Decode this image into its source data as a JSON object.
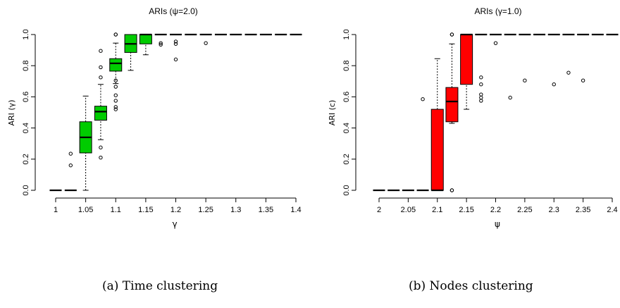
{
  "chart_data": [
    {
      "type": "boxplot",
      "title": "ARIs (ψ=2.0)",
      "xlabel": "γ",
      "ylabel": "ARI (γ)",
      "fill_color": "#00cc00",
      "ylim": [
        0,
        1
      ],
      "x_tick_labels": [
        "1",
        "1.05",
        "1.1",
        "1.15",
        "1.2",
        "1.25",
        "1.3",
        "1.35",
        "1.4"
      ],
      "y_tick_labels": [
        "0.0",
        "0.2",
        "0.4",
        "0.6",
        "0.8",
        "1.0"
      ],
      "boxes": [
        {
          "x": 1.0,
          "min": 0.0,
          "q1": 0.0,
          "median": 0.0,
          "q3": 0.0,
          "max": 0.0,
          "outliers": []
        },
        {
          "x": 1.025,
          "min": 0.0,
          "q1": 0.0,
          "median": 0.0,
          "q3": 0.0,
          "max": 0.0,
          "outliers": [
            0.16,
            0.235
          ]
        },
        {
          "x": 1.05,
          "min": 0.0,
          "q1": 0.24,
          "median": 0.34,
          "q3": 0.44,
          "max": 0.605,
          "outliers": []
        },
        {
          "x": 1.075,
          "min": 0.325,
          "q1": 0.45,
          "median": 0.505,
          "q3": 0.54,
          "max": 0.68,
          "outliers": [
            0.21,
            0.275,
            0.725,
            0.79,
            0.895
          ]
        },
        {
          "x": 1.1,
          "min": 0.685,
          "q1": 0.765,
          "median": 0.815,
          "q3": 0.845,
          "max": 0.945,
          "outliers": [
            0.52,
            0.535,
            0.575,
            0.61,
            0.665,
            0.705,
            1.0,
            1.0
          ]
        },
        {
          "x": 1.125,
          "min": 0.77,
          "q1": 0.885,
          "median": 0.94,
          "q3": 1.0,
          "max": 1.0,
          "outliers": []
        },
        {
          "x": 1.15,
          "min": 0.87,
          "q1": 0.94,
          "median": 1.0,
          "q3": 1.0,
          "max": 1.0,
          "outliers": []
        },
        {
          "x": 1.175,
          "min": 1.0,
          "q1": 1.0,
          "median": 1.0,
          "q3": 1.0,
          "max": 1.0,
          "outliers": [
            0.935,
            0.945
          ]
        },
        {
          "x": 1.2,
          "min": 1.0,
          "q1": 1.0,
          "median": 1.0,
          "q3": 1.0,
          "max": 1.0,
          "outliers": [
            0.84,
            0.94,
            0.955
          ]
        },
        {
          "x": 1.225,
          "min": 1.0,
          "q1": 1.0,
          "median": 1.0,
          "q3": 1.0,
          "max": 1.0,
          "outliers": []
        },
        {
          "x": 1.25,
          "min": 1.0,
          "q1": 1.0,
          "median": 1.0,
          "q3": 1.0,
          "max": 1.0,
          "outliers": [
            0.945
          ]
        },
        {
          "x": 1.275,
          "min": 1.0,
          "q1": 1.0,
          "median": 1.0,
          "q3": 1.0,
          "max": 1.0,
          "outliers": []
        },
        {
          "x": 1.3,
          "min": 1.0,
          "q1": 1.0,
          "median": 1.0,
          "q3": 1.0,
          "max": 1.0,
          "outliers": []
        },
        {
          "x": 1.325,
          "min": 1.0,
          "q1": 1.0,
          "median": 1.0,
          "q3": 1.0,
          "max": 1.0,
          "outliers": []
        },
        {
          "x": 1.35,
          "min": 1.0,
          "q1": 1.0,
          "median": 1.0,
          "q3": 1.0,
          "max": 1.0,
          "outliers": []
        },
        {
          "x": 1.375,
          "min": 1.0,
          "q1": 1.0,
          "median": 1.0,
          "q3": 1.0,
          "max": 1.0,
          "outliers": []
        },
        {
          "x": 1.4,
          "min": 1.0,
          "q1": 1.0,
          "median": 1.0,
          "q3": 1.0,
          "max": 1.0,
          "outliers": []
        }
      ]
    },
    {
      "type": "boxplot",
      "title": "ARIs (γ=1.0)",
      "xlabel": "ψ",
      "ylabel": "ARI (c)",
      "fill_color": "#ff0000",
      "ylim": [
        0,
        1
      ],
      "x_tick_labels": [
        "2",
        "2.05",
        "2.1",
        "2.15",
        "2.2",
        "2.25",
        "2.3",
        "2.35",
        "2.4"
      ],
      "y_tick_labels": [
        "0.0",
        "0.2",
        "0.4",
        "0.6",
        "0.8",
        "1.0"
      ],
      "boxes": [
        {
          "x": 2.0,
          "min": 0.0,
          "q1": 0.0,
          "median": 0.0,
          "q3": 0.0,
          "max": 0.0,
          "outliers": []
        },
        {
          "x": 2.025,
          "min": 0.0,
          "q1": 0.0,
          "median": 0.0,
          "q3": 0.0,
          "max": 0.0,
          "outliers": []
        },
        {
          "x": 2.05,
          "min": 0.0,
          "q1": 0.0,
          "median": 0.0,
          "q3": 0.0,
          "max": 0.0,
          "outliers": []
        },
        {
          "x": 2.075,
          "min": 0.0,
          "q1": 0.0,
          "median": 0.0,
          "q3": 0.0,
          "max": 0.0,
          "outliers": [
            0.585
          ]
        },
        {
          "x": 2.1,
          "min": 0.0,
          "q1": 0.0,
          "median": 0.0,
          "q3": 0.52,
          "max": 0.845,
          "outliers": []
        },
        {
          "x": 2.125,
          "min": 0.43,
          "q1": 0.44,
          "median": 0.57,
          "q3": 0.66,
          "max": 0.94,
          "outliers": [
            0.0,
            0.0,
            1.0,
            1.0
          ]
        },
        {
          "x": 2.15,
          "min": 0.52,
          "q1": 0.68,
          "median": 1.0,
          "q3": 1.0,
          "max": 1.0,
          "outliers": []
        },
        {
          "x": 2.175,
          "min": 1.0,
          "q1": 1.0,
          "median": 1.0,
          "q3": 1.0,
          "max": 1.0,
          "outliers": [
            0.575,
            0.595,
            0.615,
            0.68,
            0.725
          ]
        },
        {
          "x": 2.2,
          "min": 1.0,
          "q1": 1.0,
          "median": 1.0,
          "q3": 1.0,
          "max": 1.0,
          "outliers": [
            0.945
          ]
        },
        {
          "x": 2.225,
          "min": 1.0,
          "q1": 1.0,
          "median": 1.0,
          "q3": 1.0,
          "max": 1.0,
          "outliers": [
            0.595
          ]
        },
        {
          "x": 2.25,
          "min": 1.0,
          "q1": 1.0,
          "median": 1.0,
          "q3": 1.0,
          "max": 1.0,
          "outliers": [
            0.705
          ]
        },
        {
          "x": 2.275,
          "min": 1.0,
          "q1": 1.0,
          "median": 1.0,
          "q3": 1.0,
          "max": 1.0,
          "outliers": []
        },
        {
          "x": 2.3,
          "min": 1.0,
          "q1": 1.0,
          "median": 1.0,
          "q3": 1.0,
          "max": 1.0,
          "outliers": [
            0.68
          ]
        },
        {
          "x": 2.325,
          "min": 1.0,
          "q1": 1.0,
          "median": 1.0,
          "q3": 1.0,
          "max": 1.0,
          "outliers": [
            0.755
          ]
        },
        {
          "x": 2.35,
          "min": 1.0,
          "q1": 1.0,
          "median": 1.0,
          "q3": 1.0,
          "max": 1.0,
          "outliers": [
            0.705
          ]
        },
        {
          "x": 2.375,
          "min": 1.0,
          "q1": 1.0,
          "median": 1.0,
          "q3": 1.0,
          "max": 1.0,
          "outliers": []
        },
        {
          "x": 2.4,
          "min": 1.0,
          "q1": 1.0,
          "median": 1.0,
          "q3": 1.0,
          "max": 1.0,
          "outliers": []
        }
      ]
    }
  ],
  "captions": {
    "a": "(a)  Time clustering",
    "b": "(b)  Nodes clustering"
  }
}
